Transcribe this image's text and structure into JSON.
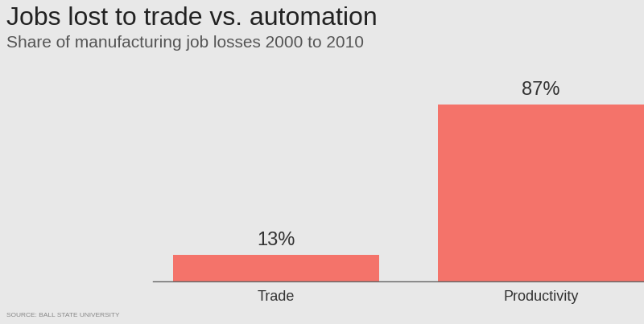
{
  "chart_data": {
    "type": "bar",
    "title": "Jobs lost to trade vs. automation",
    "subtitle": "Share of manufacturing job losses 2000 to 2010",
    "categories": [
      "Trade",
      "Productivity"
    ],
    "values": [
      13,
      87
    ],
    "value_labels": [
      "13%",
      "87%"
    ],
    "data_labels": true,
    "color": "#f4736a",
    "ylim": [
      0,
      87
    ],
    "tick_labels": "x",
    "grid": false,
    "source": "SOURCE: BALL STATE UNIVERSITY"
  }
}
